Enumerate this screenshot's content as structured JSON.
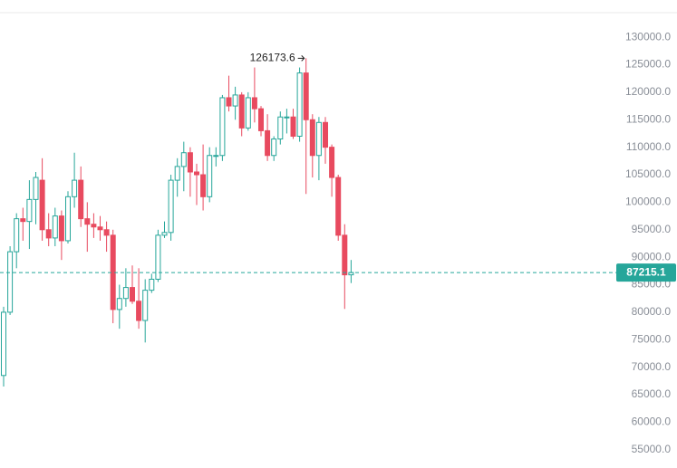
{
  "chart_data": {
    "type": "candlestick",
    "up_color": "#26a69a",
    "down_color": "#e84a5f",
    "ylim": [
      52500,
      134300
    ],
    "yticks": [
      {
        "value": 55000,
        "label": "55000.0"
      },
      {
        "value": 60000,
        "label": "60000.0"
      },
      {
        "value": 65000,
        "label": "65000.0"
      },
      {
        "value": 70000,
        "label": "70000.0"
      },
      {
        "value": 75000,
        "label": "75000.0"
      },
      {
        "value": 80000,
        "label": "80000.0"
      },
      {
        "value": 85000,
        "label": "85000.0"
      },
      {
        "value": 90000,
        "label": "90000.0"
      },
      {
        "value": 95000,
        "label": "95000.0"
      },
      {
        "value": 100000,
        "label": "100000.0"
      },
      {
        "value": 105000,
        "label": "105000.0"
      },
      {
        "value": 110000,
        "label": "110000.0"
      },
      {
        "value": 115000,
        "label": "115000.0"
      },
      {
        "value": 120000,
        "label": "120000.0"
      },
      {
        "value": 125000,
        "label": "125000.0"
      },
      {
        "value": 130000,
        "label": "130000.0"
      }
    ],
    "open": [
      68500,
      80000,
      91000,
      97000,
      96500,
      100500,
      104000,
      95000,
      93500,
      97500,
      93000,
      101000,
      104000,
      97000,
      96000,
      95500,
      95000,
      94000,
      80500,
      82500,
      84500,
      82000,
      78500,
      84000,
      86000,
      94000,
      94500,
      104000,
      106500,
      109000,
      105500,
      105000,
      101000,
      108500,
      108500,
      119000,
      117500,
      119500,
      113500,
      119000,
      117000,
      113000,
      108500,
      111500,
      115500,
      115500,
      112000,
      123500,
      115000,
      108500,
      114500,
      110000,
      104500,
      94000,
      86800
    ],
    "high": [
      81000,
      92000,
      98000,
      99000,
      104000,
      105500,
      108000,
      98000,
      99000,
      98500,
      102000,
      109000,
      106500,
      100000,
      98000,
      97500,
      96500,
      95000,
      85000,
      88000,
      88500,
      88000,
      86000,
      87000,
      95000,
      96500,
      105000,
      108000,
      111000,
      110000,
      107000,
      110500,
      110000,
      110000,
      119500,
      123000,
      121000,
      120000,
      120000,
      124500,
      117500,
      116000,
      112000,
      116500,
      117000,
      117000,
      124500,
      126173.6,
      116000,
      115500,
      115500,
      110500,
      105000,
      96000,
      89500
    ],
    "low": [
      66500,
      79500,
      88000,
      93000,
      91500,
      96000,
      93000,
      92000,
      92000,
      89500,
      92500,
      99000,
      95500,
      91000,
      93500,
      93000,
      91000,
      78000,
      77000,
      81000,
      81500,
      77000,
      74500,
      83500,
      85500,
      93500,
      93000,
      101000,
      102000,
      101000,
      99500,
      98500,
      100000,
      106500,
      107500,
      116500,
      115000,
      112000,
      113000,
      114500,
      112000,
      107500,
      107500,
      110500,
      112500,
      111500,
      111000,
      101500,
      104500,
      104000,
      107000,
      101000,
      93000,
      80600,
      85300
    ],
    "close": [
      80000,
      91000,
      97000,
      96500,
      100500,
      104500,
      95000,
      93500,
      97500,
      93000,
      101000,
      104000,
      97000,
      96000,
      95500,
      95000,
      94000,
      80500,
      82500,
      84500,
      82000,
      78500,
      84000,
      86000,
      94000,
      94500,
      104000,
      106500,
      109000,
      105500,
      105000,
      101000,
      108500,
      108500,
      119000,
      117500,
      119500,
      113500,
      119000,
      117000,
      113000,
      108500,
      111500,
      115500,
      115500,
      112000,
      123500,
      115000,
      108500,
      114500,
      110000,
      104500,
      94000,
      86800,
      87215.1
    ]
  }
}
